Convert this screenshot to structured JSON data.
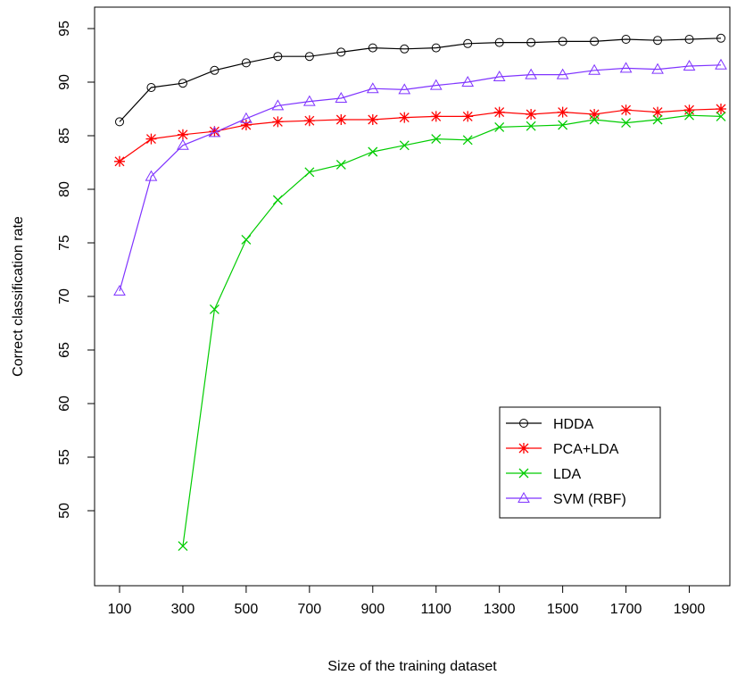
{
  "chart_data": {
    "type": "line",
    "title": "",
    "xlabel": "Size of the training dataset",
    "ylabel": "Correct classification rate",
    "xlim": [
      100,
      2000
    ],
    "ylim": [
      43,
      98
    ],
    "x": [
      100,
      200,
      300,
      400,
      500,
      600,
      700,
      800,
      900,
      1000,
      1100,
      1200,
      1300,
      1400,
      1500,
      1600,
      1700,
      1800,
      1900,
      2000
    ],
    "xticks": [
      100,
      300,
      500,
      700,
      900,
      1100,
      1300,
      1500,
      1700,
      1900
    ],
    "yticks": [
      50,
      55,
      60,
      65,
      70,
      75,
      80,
      85,
      90,
      95
    ],
    "grid": false,
    "legend_position": "bottom-right",
    "series": [
      {
        "name": "HDDA",
        "color": "#000000",
        "marker": "circle",
        "values": [
          86.3,
          89.5,
          89.9,
          91.1,
          91.8,
          92.4,
          92.4,
          92.8,
          93.2,
          93.1,
          93.2,
          93.6,
          93.7,
          93.7,
          93.8,
          93.8,
          94.0,
          93.9,
          94.0,
          94.1
        ]
      },
      {
        "name": "PCA+LDA",
        "color": "#ff0000",
        "marker": "asterisk",
        "values": [
          82.6,
          84.7,
          85.1,
          85.4,
          86.0,
          86.3,
          86.4,
          86.5,
          86.5,
          86.7,
          86.8,
          86.8,
          87.2,
          87.0,
          87.2,
          87.0,
          87.4,
          87.2,
          87.4,
          87.5
        ]
      },
      {
        "name": "LDA",
        "color": "#00cc00",
        "marker": "cross",
        "values": [
          null,
          null,
          46.7,
          68.8,
          75.3,
          79.0,
          81.6,
          82.3,
          83.5,
          84.1,
          84.7,
          84.6,
          85.8,
          85.9,
          86.0,
          86.5,
          86.2,
          86.5,
          86.9,
          86.8
        ]
      },
      {
        "name": "SVM (RBF)",
        "color": "#7f33ff",
        "marker": "triangle",
        "values": [
          70.5,
          81.2,
          84.1,
          85.3,
          86.6,
          87.8,
          88.2,
          88.5,
          89.4,
          89.3,
          89.7,
          90.0,
          90.5,
          90.7,
          90.7,
          91.1,
          91.3,
          91.2,
          91.5,
          91.6
        ]
      }
    ]
  }
}
